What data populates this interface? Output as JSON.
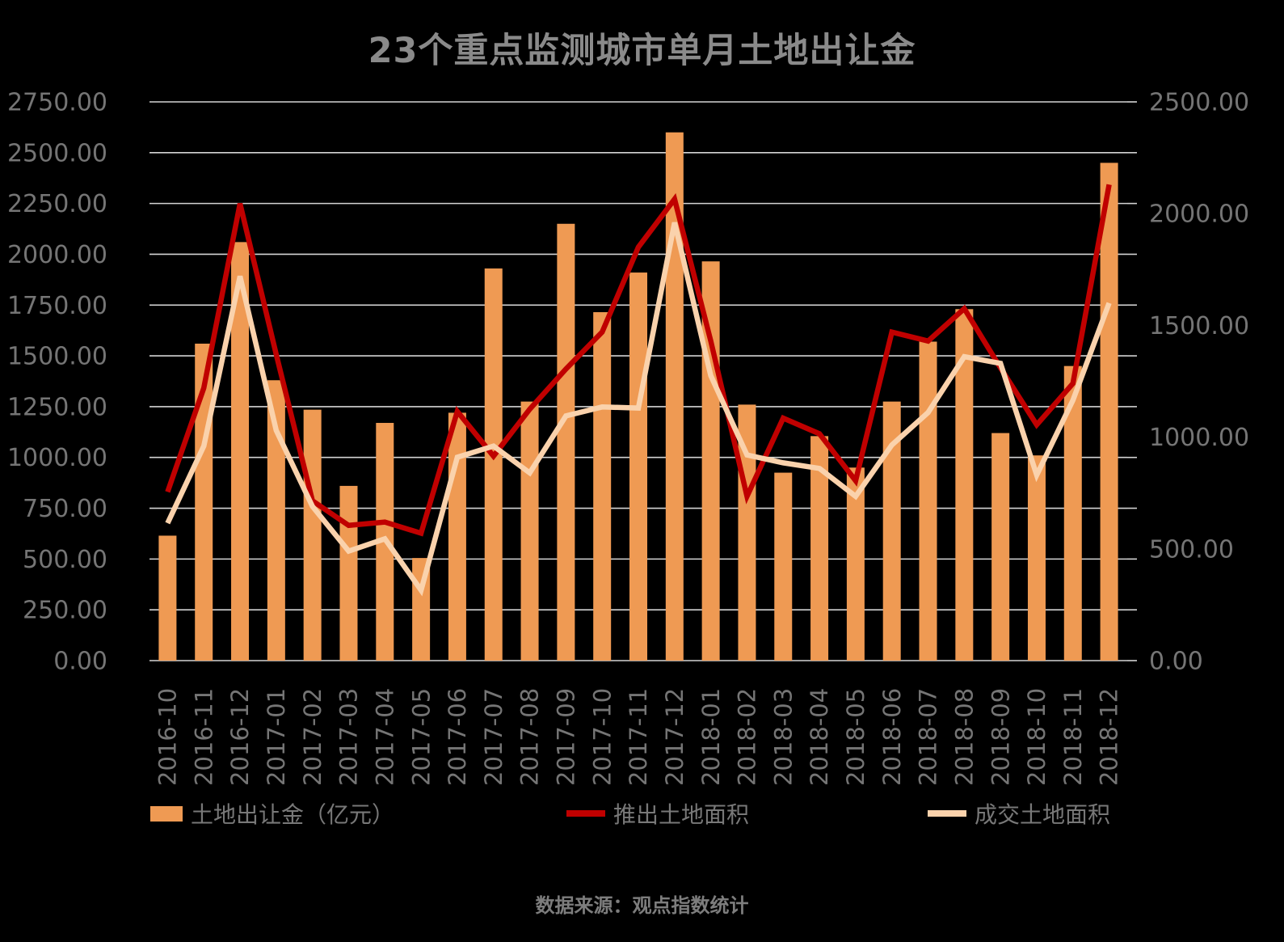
{
  "title": "23个重点监测城市单月土地出让金",
  "source": "数据来源：观点指数统计",
  "colors": {
    "background": "#000000",
    "bar": "#EF9A53",
    "line_supply": "#C00000",
    "line_transacted": "#FAD2AC",
    "grid": "#D4D4D4",
    "axis_text": "#757575"
  },
  "left_axis": {
    "min": 0,
    "max": 2750,
    "step": 250,
    "labels": [
      "2750.00",
      "2500.00",
      "2250.00",
      "2000.00",
      "1750.00",
      "1500.00",
      "1250.00",
      "1000.00",
      "750.00",
      "500.00",
      "250.00",
      "0.00"
    ]
  },
  "right_axis": {
    "min": 0,
    "max": 2500,
    "step": 500,
    "labels": [
      "2500.00",
      "2000.00",
      "1500.00",
      "1000.00",
      "500.00",
      "0.00"
    ]
  },
  "legend": [
    {
      "label": "土地出让金（亿元）",
      "marker": "square",
      "color_key": "bar"
    },
    {
      "label": "推出土地面积",
      "marker": "line",
      "color_key": "line_supply"
    },
    {
      "label": "成交土地面积",
      "marker": "line",
      "color_key": "line_transacted"
    }
  ],
  "chart_data": {
    "type": "bar",
    "subtype": "bar+line combo, dual y-axis",
    "title": "23个重点监测城市单月土地出让金",
    "xlabel": "",
    "ylabel_left": "土地出让金（亿元）",
    "ylabel_right": "土地面积",
    "ylim_left": [
      0,
      2750
    ],
    "ylim_right": [
      0,
      2500
    ],
    "grid": true,
    "legend_position": "bottom",
    "categories": [
      "2016-10",
      "2016-11",
      "2016-12",
      "2017-01",
      "2017-02",
      "2017-03",
      "2017-04",
      "2017-05",
      "2017-06",
      "2017-07",
      "2017-08",
      "2017-09",
      "2017-10",
      "2017-11",
      "2017-12",
      "2018-01",
      "2018-02",
      "2018-03",
      "2018-04",
      "2018-05",
      "2018-06",
      "2018-07",
      "2018-08",
      "2018-09",
      "2018-10",
      "2018-11",
      "2018-12"
    ],
    "series": [
      {
        "name": "土地出让金（亿元）",
        "type": "bar",
        "axis": "left",
        "color_key": "bar",
        "values": [
          615,
          1560,
          2060,
          1380,
          1235,
          860,
          1170,
          505,
          1220,
          1930,
          1275,
          2150,
          1715,
          1910,
          2600,
          1965,
          1260,
          925,
          1105,
          950,
          1275,
          1570,
          1730,
          1120,
          1010,
          1450,
          2450
        ]
      },
      {
        "name": "推出土地面积",
        "type": "line",
        "axis": "right",
        "color_key": "line_supply",
        "values": [
          755,
          1220,
          2045,
          1370,
          715,
          605,
          620,
          570,
          1115,
          915,
          1125,
          1305,
          1470,
          1850,
          2065,
          1430,
          735,
          1085,
          1015,
          805,
          1470,
          1430,
          1575,
          1310,
          1055,
          1240,
          2130
        ]
      },
      {
        "name": "成交土地面积",
        "type": "line",
        "axis": "right",
        "color_key": "line_transacted",
        "values": [
          615,
          960,
          1720,
          1030,
          690,
          490,
          545,
          315,
          910,
          960,
          840,
          1095,
          1135,
          1130,
          1960,
          1275,
          920,
          885,
          860,
          735,
          965,
          1110,
          1360,
          1330,
          830,
          1165,
          1600
        ]
      }
    ]
  }
}
